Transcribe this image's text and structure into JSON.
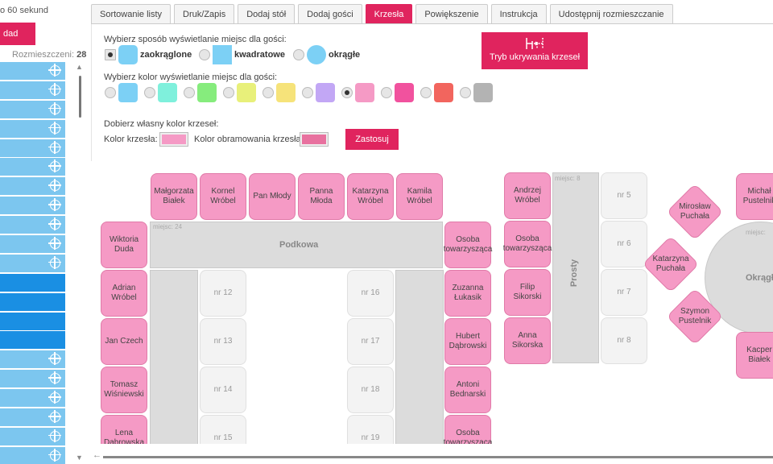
{
  "left_panel": {
    "top_text": "o 60 sekund",
    "red_button": "dad",
    "count_label": "Rozmieszczeni:",
    "count_value": "28",
    "rows": [
      {
        "dark": false
      },
      {
        "dark": false
      },
      {
        "dark": false
      },
      {
        "dark": false
      },
      {
        "dark": false
      },
      {
        "dark": false
      },
      {
        "dark": false
      },
      {
        "dark": false
      },
      {
        "dark": false
      },
      {
        "dark": false
      },
      {
        "dark": false
      },
      {
        "dark": true
      },
      {
        "dark": true
      },
      {
        "dark": true
      },
      {
        "dark": true
      },
      {
        "dark": false
      },
      {
        "dark": false
      },
      {
        "dark": false
      },
      {
        "dark": false
      },
      {
        "dark": false
      },
      {
        "dark": false
      }
    ]
  },
  "tabs": [
    {
      "label": "Sortowanie listy",
      "active": false
    },
    {
      "label": "Druk/Zapis",
      "active": false
    },
    {
      "label": "Dodaj stół",
      "active": false
    },
    {
      "label": "Dodaj gości",
      "active": false
    },
    {
      "label": "Krzesła",
      "active": true
    },
    {
      "label": "Powiększenie",
      "active": false
    },
    {
      "label": "Instrukcja",
      "active": false
    },
    {
      "label": "Udostępnij rozmieszczanie",
      "active": false
    }
  ],
  "settings": {
    "shape_label": "Wybierz sposób wyświetlanie miejsc dla gości:",
    "shapes": [
      {
        "label": "zaokrąglone",
        "selected": true
      },
      {
        "label": "kwadratowe",
        "selected": false
      },
      {
        "label": "okrągłe",
        "selected": false
      }
    ],
    "color_label": "Wybierz kolor wyświetlanie miejsc dla gości:",
    "colors": [
      {
        "hex": "#7cd0f5",
        "selected": false
      },
      {
        "hex": "#7ff0dc",
        "selected": false
      },
      {
        "hex": "#86ec7d",
        "selected": false
      },
      {
        "hex": "#e8f07a",
        "selected": false
      },
      {
        "hex": "#f6e37a",
        "selected": false
      },
      {
        "hex": "#c2a7f5",
        "selected": false
      },
      {
        "hex": "#f59ac5",
        "selected": true
      },
      {
        "hex": "#f1529e",
        "selected": false
      },
      {
        "hex": "#f2655e",
        "selected": false
      },
      {
        "hex": "#b3b3b3",
        "selected": false
      }
    ],
    "custom_label": "Dobierz własny kolor krzeseł:",
    "chair_color_label": "Kolor krzesła:",
    "chair_color": "#f59ac5",
    "border_color_label": "Kolor obramowania krzesła:",
    "border_color": "#e8719f",
    "apply_button": "Zastosuj",
    "hide_chairs_button": "Tryb ukrywania krzeseł"
  },
  "tables": {
    "podkowa": {
      "name": "Podkowa",
      "capacity": "miejsc: 24"
    },
    "prosty": {
      "name": "Prosty",
      "capacity": "miejsc: 8"
    },
    "okragly": {
      "name": "Okrągły",
      "capacity": "miejsc:"
    }
  },
  "seats": {
    "top": [
      "Małgorzata Białek",
      "Kornel Wróbel",
      "Pan Młody",
      "Panna Młoda",
      "Katarzyna Wróbel",
      "Kamila Wróbel"
    ],
    "left": [
      "Wiktoria Duda",
      "Adrian Wróbel",
      "Jan Czech",
      "Tomasz Wiśniewski",
      "Lena Dąbrowska"
    ],
    "inner_left": [
      "nr 12",
      "nr 13",
      "nr 14",
      "nr 15"
    ],
    "inner_right": [
      "nr 16",
      "nr 17",
      "nr 18",
      "nr 19"
    ],
    "right": [
      "Osoba towarzysząca",
      "Zuzanna Łukasik",
      "Hubert Dąbrowski",
      "Antoni Bednarski",
      "Osoba towarzysząca"
    ],
    "prosty_left": [
      "Andrzej Wróbel",
      "Osoba towarzysząca",
      "Filip Sikorski",
      "Anna Sikorska"
    ],
    "prosty_right": [
      "nr 5",
      "nr 6",
      "nr 7",
      "nr 8"
    ],
    "round_rect": [
      "Michał Pustelnik",
      "Kacper Białek"
    ],
    "round_diamond": [
      "Mirosław Puchała",
      "Katarzyna Puchała",
      "Szymon Pustelnik"
    ]
  }
}
